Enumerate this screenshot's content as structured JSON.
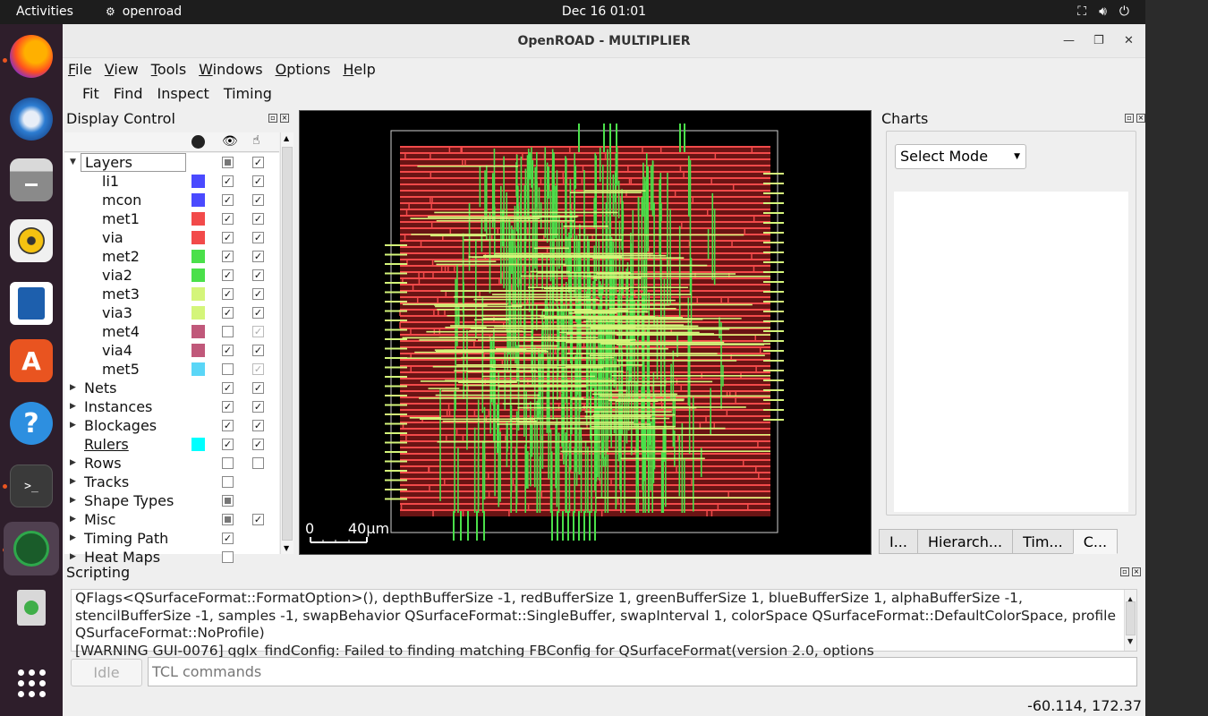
{
  "topbar": {
    "activities": "Activities",
    "app_name": "openroad",
    "clock": "Dec 16  01:01"
  },
  "dock": {
    "apps": [
      "firefox",
      "thunderbird",
      "files",
      "rhythmbox",
      "libreoffice-writer",
      "app-center",
      "help",
      "terminal",
      "openroad",
      "trash",
      "show-apps"
    ]
  },
  "window": {
    "title": "OpenROAD - MULTIPLIER",
    "minimize": "—",
    "maximize": "❐",
    "close": "✕"
  },
  "menubar": {
    "items": [
      "File",
      "View",
      "Tools",
      "Windows",
      "Options",
      "Help"
    ]
  },
  "toolbar": {
    "items": [
      "Fit",
      "Find",
      "Inspect",
      "Timing"
    ]
  },
  "display_control": {
    "title": "Display Control",
    "rows": [
      {
        "label": "Layers",
        "indent": 0,
        "expandable": true,
        "expanded": true,
        "color": null,
        "visible": "partial",
        "selectable": "checked"
      },
      {
        "label": "li1",
        "indent": 1,
        "color": "#4a4aff",
        "visible": "checked",
        "selectable": "checked"
      },
      {
        "label": "mcon",
        "indent": 1,
        "color": "#4a4aff",
        "visible": "checked",
        "selectable": "checked"
      },
      {
        "label": "met1",
        "indent": 1,
        "color": "#f24a4a",
        "visible": "checked",
        "selectable": "checked"
      },
      {
        "label": "via",
        "indent": 1,
        "color": "#f24a4a",
        "visible": "checked",
        "selectable": "checked"
      },
      {
        "label": "met2",
        "indent": 1,
        "color": "#4ae04a",
        "visible": "checked",
        "selectable": "checked"
      },
      {
        "label": "via2",
        "indent": 1,
        "color": "#4ae04a",
        "visible": "checked",
        "selectable": "checked"
      },
      {
        "label": "met3",
        "indent": 1,
        "color": "#d4f57a",
        "visible": "checked",
        "selectable": "checked"
      },
      {
        "label": "via3",
        "indent": 1,
        "color": "#d4f57a",
        "visible": "checked",
        "selectable": "checked"
      },
      {
        "label": "met4",
        "indent": 1,
        "color": "#c0587a",
        "visible": "unchecked",
        "selectable": "disabled"
      },
      {
        "label": "via4",
        "indent": 1,
        "color": "#c0587a",
        "visible": "checked",
        "selectable": "checked"
      },
      {
        "label": "met5",
        "indent": 1,
        "color": "#5ad6f7",
        "visible": "unchecked",
        "selectable": "disabled"
      },
      {
        "label": "Nets",
        "indent": 0,
        "expandable": true,
        "color": null,
        "visible": "checked",
        "selectable": "checked"
      },
      {
        "label": "Instances",
        "indent": 0,
        "expandable": true,
        "color": null,
        "visible": "checked",
        "selectable": "checked"
      },
      {
        "label": "Blockages",
        "indent": 0,
        "expandable": true,
        "color": null,
        "visible": "checked",
        "selectable": "checked"
      },
      {
        "label": "Rulers",
        "indent": 0,
        "expandable": false,
        "underline": true,
        "color": "#00ffff",
        "visible": "checked",
        "selectable": "checked"
      },
      {
        "label": "Rows",
        "indent": 0,
        "expandable": true,
        "color": null,
        "visible": "unchecked",
        "selectable": "unchecked"
      },
      {
        "label": "Tracks",
        "indent": 0,
        "expandable": true,
        "color": null,
        "visible": "unchecked",
        "selectable": "none"
      },
      {
        "label": "Shape Types",
        "indent": 0,
        "expandable": true,
        "color": null,
        "visible": "partial",
        "selectable": "none"
      },
      {
        "label": "Misc",
        "indent": 0,
        "expandable": true,
        "color": null,
        "visible": "partial",
        "selectable": "checked"
      },
      {
        "label": "Timing Path",
        "indent": 0,
        "expandable": true,
        "color": null,
        "visible": "checked",
        "selectable": "none"
      },
      {
        "label": "Heat Maps",
        "indent": 0,
        "expandable": true,
        "color": null,
        "visible": "unchecked",
        "selectable": "none"
      }
    ]
  },
  "layout_view": {
    "scale_zero": "0",
    "scale_label": "40μm"
  },
  "charts": {
    "title": "Charts",
    "select_mode": "Select Mode",
    "tabs": [
      "I...",
      "Hierarch...",
      "Tim...",
      "C..."
    ],
    "active_tab": "C..."
  },
  "scripting": {
    "title": "Scripting",
    "log_text": "QFlags<QSurfaceFormat::FormatOption>(), depthBufferSize -1, redBufferSize 1, greenBufferSize 1, blueBufferSize 1, alphaBufferSize -1, stencilBufferSize -1, samples -1, swapBehavior QSurfaceFormat::SingleBuffer, swapInterval 1, colorSpace QSurfaceFormat::DefaultColorSpace, profile  QSurfaceFormat::NoProfile)\n[WARNING GUI-0076] qglx_findConfig: Failed to finding matching FBConfig for QSurfaceFormat(version 2.0, options",
    "idle_label": "Idle",
    "tcl_placeholder": "TCL commands",
    "tcl_value": ""
  },
  "status": {
    "coords": "-60.114, 172.37"
  },
  "colors": {
    "die_bg": "#000000",
    "met1": "#f24a4a",
    "met2": "#4ae04a",
    "met3": "#d4f57a",
    "accent": "#e95420"
  }
}
